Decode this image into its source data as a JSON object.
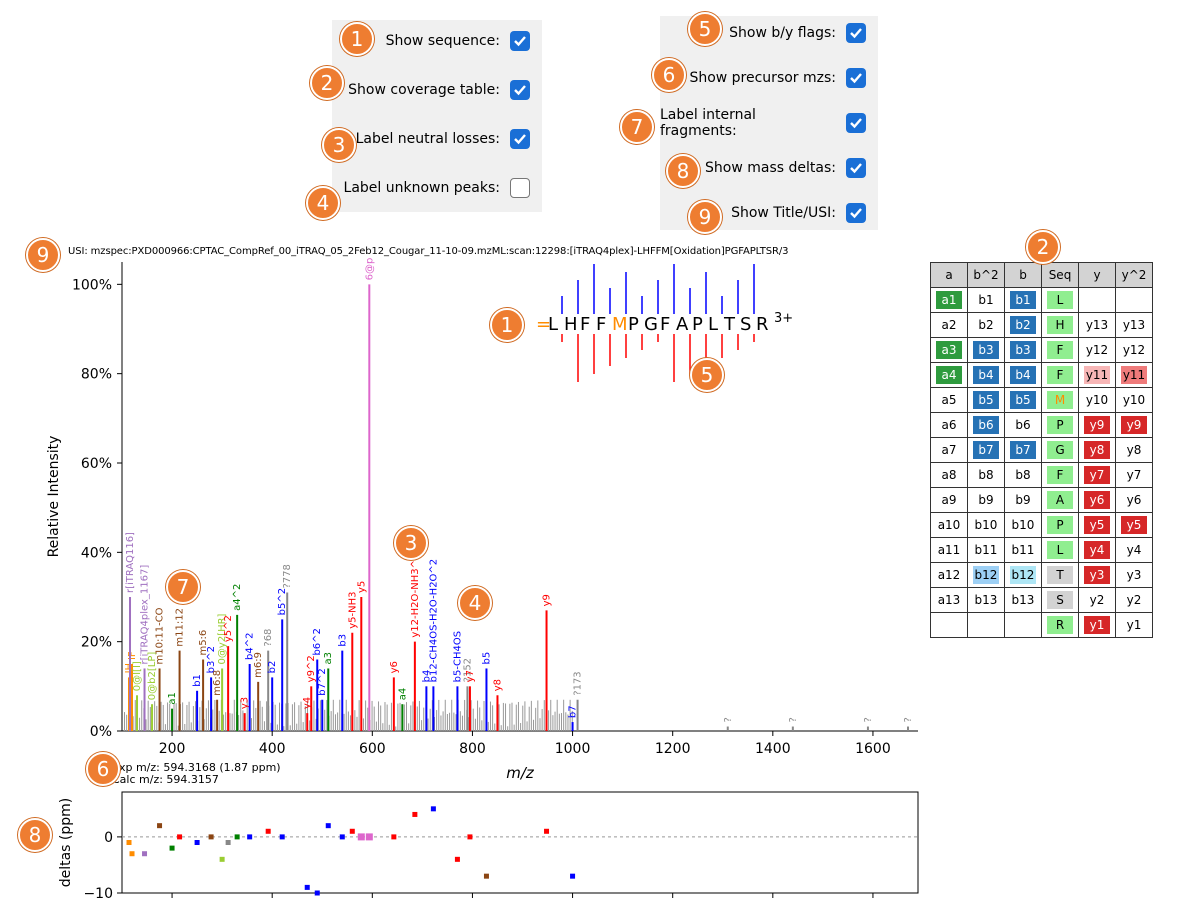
{
  "options_left": [
    {
      "label": "Show sequence:",
      "checked": true
    },
    {
      "label": "Show coverage table:",
      "checked": true
    },
    {
      "label": "Label neutral losses:",
      "checked": true
    },
    {
      "label": "Label unknown peaks:",
      "checked": false
    }
  ],
  "options_right": [
    {
      "label": "Show b/y flags:",
      "checked": true
    },
    {
      "label": "Show precursor mzs:",
      "checked": true
    },
    {
      "label": "Label internal fragments:",
      "checked": true
    },
    {
      "label": "Show mass deltas:",
      "checked": true
    },
    {
      "label": "Show Title/USI:",
      "checked": true
    }
  ],
  "badges": [
    "1",
    "2",
    "3",
    "4",
    "5",
    "6",
    "7",
    "8",
    "9",
    "9",
    "2",
    "1",
    "5",
    "3",
    "4",
    "7",
    "6",
    "8"
  ],
  "usi_text": "USI: mzspec:PXD000966:CPTAC_CompRef_00_iTRAQ_05_2Feb12_Cougar_11-10-09.mzML:scan:12298:[iTRAQ4plex]-LHFFM[Oxidation]PGFAPLTSR/3",
  "precursor": {
    "exp": "Exp m/z: 594.3168  (1.87 ppm)",
    "calc": "Calc m/z: 594.3157"
  },
  "sequence": {
    "prefix": "=",
    "residues": [
      "L",
      "H",
      "F",
      "F",
      "M",
      "P",
      "G",
      "F",
      "A",
      "P",
      "L",
      "T",
      "S",
      "R"
    ],
    "modified_index": 4,
    "charge": "3+"
  },
  "colors": {
    "b": "#0000ff",
    "y": "#ff0000",
    "a": "#008000",
    "precursor": "#dd66cc",
    "internal": "#8b4513",
    "immonium": "#ff8c00",
    "unknown": "#888888",
    "tmt": "#a070c0",
    "neutral": "#9acd32"
  },
  "chart_data": {
    "type": "bar",
    "xlabel": "m/z",
    "ylabel": "Relative Intensity",
    "xlim": [
      100,
      1690
    ],
    "ylim": [
      0,
      1.05
    ],
    "xticks": [
      "200",
      "400",
      "600",
      "800",
      "1000",
      "1200",
      "1400",
      "1600"
    ],
    "yticks": [
      "0%",
      "20%",
      "40%",
      "60%",
      "80%",
      "100%"
    ],
    "peaks": [
      {
        "mz": 114,
        "i": 0.12,
        "c": "immonium",
        "label": "IH"
      },
      {
        "mz": 120,
        "i": 0.15,
        "c": "immonium",
        "label": "IF"
      },
      {
        "mz": 145,
        "i": 0.14,
        "c": "tmt",
        "label": "r[iTRAQ4plex_1167]"
      },
      {
        "mz": 116,
        "i": 0.3,
        "c": "tmt",
        "label": "r[iTRAQ116]"
      },
      {
        "mz": 130,
        "i": 0.08,
        "c": "neutral",
        "label": "0@I[I]"
      },
      {
        "mz": 160,
        "i": 0.06,
        "c": "neutral",
        "label": "0@b2[LP]"
      },
      {
        "mz": 175,
        "i": 0.14,
        "c": "internal",
        "label": "m10:11-CO"
      },
      {
        "mz": 200,
        "i": 0.05,
        "c": "a",
        "label": "a1"
      },
      {
        "mz": 215,
        "i": 0.18,
        "c": "internal",
        "label": "m11:12"
      },
      {
        "mz": 250,
        "i": 0.09,
        "c": "b",
        "label": "b1"
      },
      {
        "mz": 262,
        "i": 0.16,
        "c": "internal",
        "label": "m5:6"
      },
      {
        "mz": 278,
        "i": 0.12,
        "c": "b",
        "label": "b3^2"
      },
      {
        "mz": 290,
        "i": 0.07,
        "c": "internal",
        "label": "m6:8"
      },
      {
        "mz": 300,
        "i": 0.14,
        "c": "neutral",
        "label": "0@y2[HR]"
      },
      {
        "mz": 312,
        "i": 0.19,
        "c": "y",
        "label": "y5^2"
      },
      {
        "mz": 330,
        "i": 0.26,
        "c": "a",
        "label": "a4^2"
      },
      {
        "mz": 345,
        "i": 0.04,
        "c": "y",
        "label": "y3"
      },
      {
        "mz": 355,
        "i": 0.15,
        "c": "b",
        "label": "b4^2"
      },
      {
        "mz": 372,
        "i": 0.11,
        "c": "internal",
        "label": "m6:9"
      },
      {
        "mz": 392,
        "i": 0.18,
        "c": "unknown",
        "label": "?68"
      },
      {
        "mz": 400,
        "i": 0.12,
        "c": "b",
        "label": "b2"
      },
      {
        "mz": 420,
        "i": 0.25,
        "c": "b",
        "label": "b5^2"
      },
      {
        "mz": 430,
        "i": 0.31,
        "c": "unknown",
        "label": "?778"
      },
      {
        "mz": 470,
        "i": 0.04,
        "c": "y",
        "label": "y4"
      },
      {
        "mz": 478,
        "i": 0.1,
        "c": "y",
        "label": "y9^2"
      },
      {
        "mz": 490,
        "i": 0.16,
        "c": "b",
        "label": "b6^2"
      },
      {
        "mz": 500,
        "i": 0.07,
        "c": "b",
        "label": "b7^2"
      },
      {
        "mz": 512,
        "i": 0.14,
        "c": "a",
        "label": "a3"
      },
      {
        "mz": 540,
        "i": 0.18,
        "c": "b",
        "label": "b3"
      },
      {
        "mz": 560,
        "i": 0.22,
        "c": "y",
        "label": "y5-NH3"
      },
      {
        "mz": 578,
        "i": 0.3,
        "c": "y",
        "label": "y5"
      },
      {
        "mz": 594,
        "i": 1.0,
        "c": "precursor",
        "label": "6@p"
      },
      {
        "mz": 643,
        "i": 0.12,
        "c": "y",
        "label": "y6"
      },
      {
        "mz": 660,
        "i": 0.06,
        "c": "a",
        "label": "a4"
      },
      {
        "mz": 685,
        "i": 0.2,
        "c": "y",
        "label": "y12-H2O-NH3^2"
      },
      {
        "mz": 708,
        "i": 0.1,
        "c": "b",
        "label": "b4"
      },
      {
        "mz": 722,
        "i": 0.1,
        "c": "b",
        "label": "b12-CH4OS-H2O-H2O^2"
      },
      {
        "mz": 770,
        "i": 0.1,
        "c": "b",
        "label": "b5-CH4OS"
      },
      {
        "mz": 790,
        "i": 0.1,
        "c": "unknown",
        "label": "?152"
      },
      {
        "mz": 795,
        "i": 0.1,
        "c": "y",
        "label": "y7"
      },
      {
        "mz": 828,
        "i": 0.14,
        "c": "b",
        "label": "b5"
      },
      {
        "mz": 850,
        "i": 0.08,
        "c": "y",
        "label": "y8"
      },
      {
        "mz": 948,
        "i": 0.27,
        "c": "y",
        "label": "y9"
      },
      {
        "mz": 1000,
        "i": 0.02,
        "c": "b",
        "label": "b7"
      },
      {
        "mz": 1010,
        "i": 0.07,
        "c": "unknown",
        "label": "?173"
      },
      {
        "mz": 1310,
        "i": 0.01,
        "c": "unknown",
        "label": "?"
      },
      {
        "mz": 1440,
        "i": 0.01,
        "c": "unknown",
        "label": "?"
      },
      {
        "mz": 1590,
        "i": 0.01,
        "c": "unknown",
        "label": "?"
      },
      {
        "mz": 1670,
        "i": 0.01,
        "c": "unknown",
        "label": "?"
      }
    ],
    "deltas": {
      "ylabel": "deltas (ppm)",
      "ylim": [
        -10,
        8
      ],
      "yticks": [
        "−10",
        "0"
      ],
      "points": [
        [
          114,
          -1,
          "immonium"
        ],
        [
          120,
          -3,
          "immonium"
        ],
        [
          145,
          -3,
          "tmt"
        ],
        [
          175,
          2,
          "internal"
        ],
        [
          200,
          -2,
          "a"
        ],
        [
          215,
          0,
          "y"
        ],
        [
          250,
          -1,
          "b"
        ],
        [
          278,
          0,
          "internal"
        ],
        [
          300,
          -4,
          "neutral"
        ],
        [
          312,
          -1,
          "unknown"
        ],
        [
          330,
          0,
          "a"
        ],
        [
          355,
          0,
          "b"
        ],
        [
          392,
          1,
          "y"
        ],
        [
          420,
          0,
          "b"
        ],
        [
          470,
          -9,
          "b"
        ],
        [
          490,
          -10,
          "b"
        ],
        [
          512,
          2,
          "b"
        ],
        [
          540,
          0,
          "b"
        ],
        [
          560,
          1,
          "y"
        ],
        [
          578,
          0,
          "precursor"
        ],
        [
          594,
          0,
          "precursor"
        ],
        [
          643,
          0,
          "y"
        ],
        [
          685,
          4,
          "y"
        ],
        [
          722,
          5,
          "b"
        ],
        [
          770,
          -4,
          "y"
        ],
        [
          795,
          0,
          "y"
        ],
        [
          828,
          -7,
          "internal"
        ],
        [
          948,
          1,
          "y"
        ],
        [
          1000,
          -7,
          "b"
        ]
      ]
    }
  },
  "coverage_table": {
    "headers": [
      "a",
      "b^2",
      "b",
      "Seq",
      "y",
      "y^2"
    ],
    "rows": [
      [
        "a1",
        "b1",
        "b1",
        "L",
        "",
        ""
      ],
      [
        "a2",
        "b2",
        "b2",
        "H",
        "y13",
        "y13"
      ],
      [
        "a3",
        "b3",
        "b3",
        "F",
        "y12",
        "y12"
      ],
      [
        "a4",
        "b4",
        "b4",
        "F",
        "y11",
        "y11"
      ],
      [
        "a5",
        "b5",
        "b5",
        "M",
        "y10",
        "y10"
      ],
      [
        "a6",
        "b6",
        "b6",
        "P",
        "y9",
        "y9"
      ],
      [
        "a7",
        "b7",
        "b7",
        "G",
        "y8",
        "y8"
      ],
      [
        "a8",
        "b8",
        "b8",
        "F",
        "y7",
        "y7"
      ],
      [
        "a9",
        "b9",
        "b9",
        "A",
        "y6",
        "y6"
      ],
      [
        "a10",
        "b10",
        "b10",
        "P",
        "y5",
        "y5"
      ],
      [
        "a11",
        "b11",
        "b11",
        "L",
        "y4",
        "y4"
      ],
      [
        "a12",
        "b12",
        "b12",
        "T",
        "y3",
        "y3"
      ],
      [
        "a13",
        "b13",
        "b13",
        "S",
        "y2",
        "y2"
      ],
      [
        "",
        "",
        "",
        "R",
        "y1",
        "y1"
      ]
    ],
    "highlight": {
      "a": [
        0,
        2,
        3
      ],
      "b2": [
        2,
        3,
        4,
        5,
        6,
        11
      ],
      "b": [
        0,
        1,
        2,
        3,
        4,
        6,
        11
      ],
      "y": [
        3,
        5,
        6,
        7,
        8,
        9,
        10,
        11,
        13
      ],
      "y2": [
        3,
        5,
        9
      ]
    }
  }
}
